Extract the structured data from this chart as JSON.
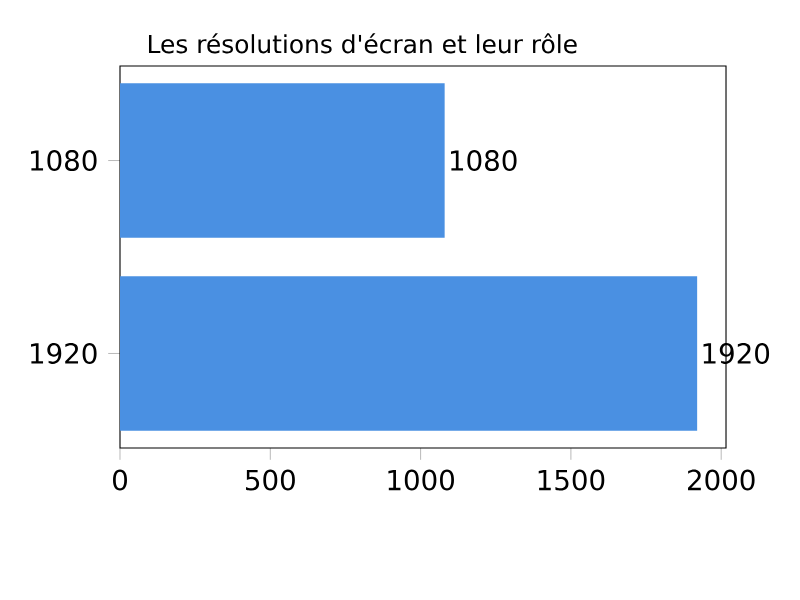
{
  "chart_data": {
    "type": "bar",
    "orientation": "horizontal",
    "title": "Les résolutions d'écran et leur rôle",
    "categories": [
      "1080",
      "1920"
    ],
    "values": [
      1080,
      1920
    ],
    "color": "#4a90e2",
    "xlim": [
      0,
      2016
    ],
    "xticks": [
      0,
      500,
      1000,
      1500,
      2000
    ],
    "data_labels": true,
    "grid": false
  }
}
